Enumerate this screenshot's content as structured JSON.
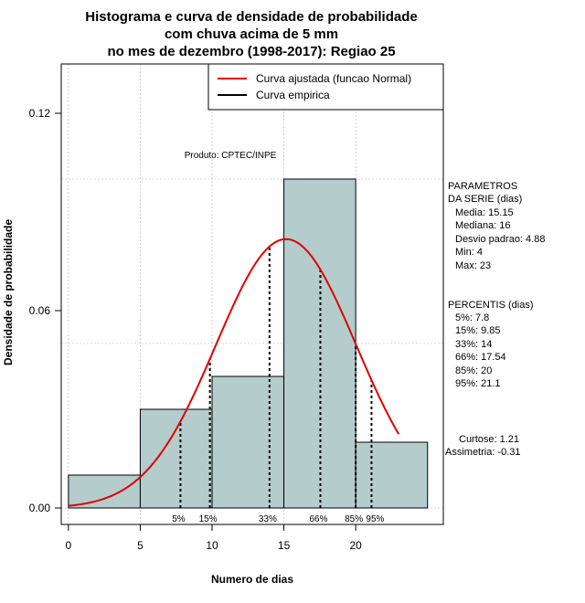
{
  "chart_data": {
    "type": "bar",
    "title_lines": [
      "Histograma e curva de densidade de probabilidade",
      "com chuva acima de 5 mm",
      "no mes de dezembro (1998-2017): Regiao 25"
    ],
    "xlabel": "Numero de dias",
    "ylabel": "Densidade de probabilidade",
    "xlim": [
      -0.5,
      26.1
    ],
    "ylim": [
      -0.005,
      0.135
    ],
    "x_ticks": [
      0,
      5,
      10,
      15,
      20
    ],
    "y_ticks": [
      0.0,
      0.06,
      0.12
    ],
    "y_tick_labels": [
      "0.00",
      "0.06",
      "0.12"
    ],
    "bins": [
      {
        "from": 0,
        "to": 5,
        "density": 0.01
      },
      {
        "from": 5,
        "to": 10,
        "density": 0.03
      },
      {
        "from": 10,
        "to": 15,
        "density": 0.04
      },
      {
        "from": 15,
        "to": 20,
        "density": 0.1
      },
      {
        "from": 20,
        "to": 25,
        "density": 0.02
      }
    ],
    "normal_curve": {
      "mean": 15.15,
      "sd": 4.88,
      "x_from": 0,
      "x_to": 23
    },
    "percentiles": [
      {
        "label": "5%",
        "value": 7.8
      },
      {
        "label": "15%",
        "value": 9.85
      },
      {
        "label": "33%",
        "value": 14
      },
      {
        "label": "66%",
        "value": 17.54
      },
      {
        "label": "85%",
        "value": 20
      },
      {
        "label": "95%",
        "value": 21.1
      }
    ],
    "legend": {
      "position": "top-right",
      "entries": [
        {
          "label": "Curva ajustada (funcao Normal)",
          "color": "#e00000"
        },
        {
          "label": "Curva empirica",
          "color": "#000000"
        }
      ]
    },
    "annotation": "Produto: CPTEC/INPE",
    "colors": {
      "bar_fill": "#b4cccc",
      "curve": "#e00000",
      "grid": "#b0b0b0"
    }
  },
  "stats_panel": {
    "params_header": [
      "PARAMETROS",
      "DA SERIE (dias)"
    ],
    "params": [
      "Media: 15.15",
      "Mediana: 16",
      "Desvio padrao: 4.88",
      "Min: 4",
      "Max: 23"
    ],
    "percentis_header": "PERCENTIS (dias)",
    "percentis": [
      "5%: 7.8",
      "15%: 9.85",
      "33%: 14",
      "66%: 17.54",
      "85%: 20",
      "95%: 21.1"
    ],
    "curtose": "Curtose: 1.21",
    "assimetria": "Assimetria: -0.31"
  }
}
